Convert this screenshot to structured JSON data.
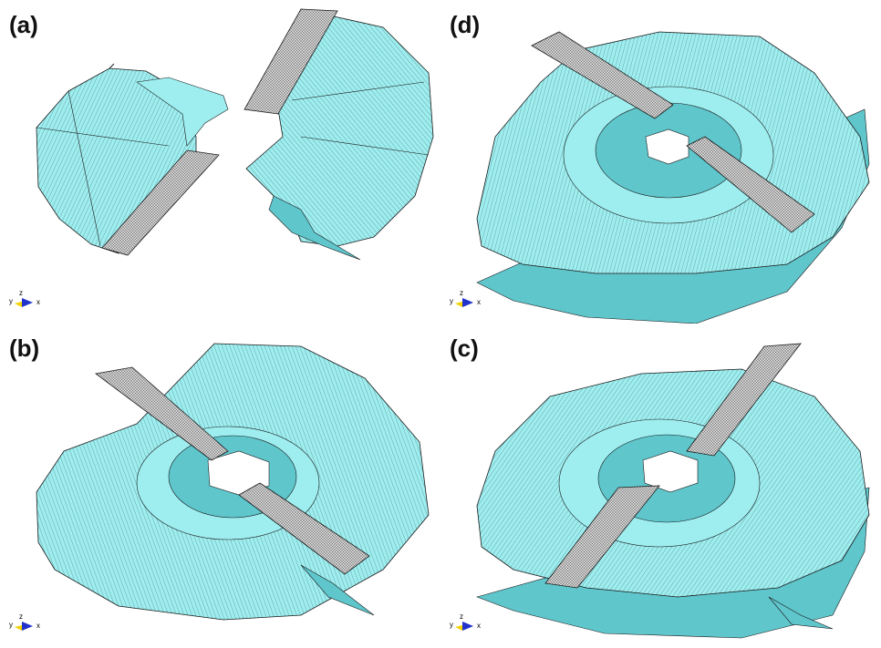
{
  "panels": [
    {
      "id": "a",
      "label": "(a)"
    },
    {
      "id": "d",
      "label": "(d)"
    },
    {
      "id": "b",
      "label": "(b)"
    },
    {
      "id": "c",
      "label": "(c)"
    }
  ],
  "axis_triad": {
    "y": "y",
    "z": "z",
    "x": "x"
  },
  "colors": {
    "surface_fill": "#9eeef0",
    "surface_shadow": "#5fc6cc",
    "mesh_line": "#1a1a1a",
    "tool_fill": "#d8d8d8",
    "triad_y": "#f2d200",
    "triad_z": "#2233cc",
    "triad_x": "#1a1a1a"
  }
}
